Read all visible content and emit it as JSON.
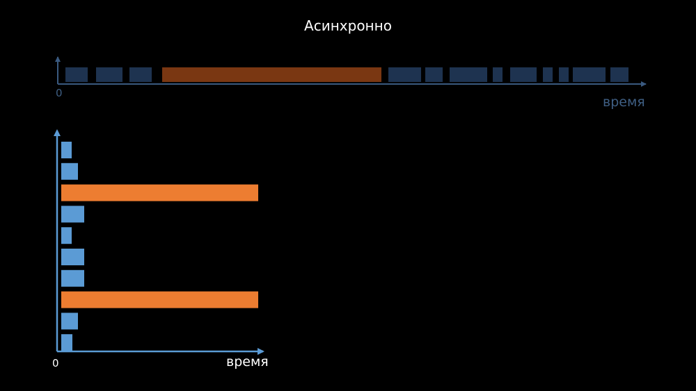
{
  "title": "Асинхронно",
  "colors": {
    "top_task": "#1e3350",
    "top_long": "#7a3712",
    "top_axis": "#3a5a80",
    "top_text": "#3f5f84",
    "bottom_task": "#5b9bd5",
    "bottom_long": "#ed7d31",
    "bottom_axis": "#5b9bd5",
    "bottom_text": "#ffffff"
  },
  "top_timeline": {
    "origin_label": "0",
    "axis_label": "время",
    "segments": [
      {
        "kind": "short",
        "start": 94,
        "end": 126
      },
      {
        "kind": "short",
        "start": 138,
        "end": 176
      },
      {
        "kind": "short",
        "start": 186,
        "end": 218
      },
      {
        "kind": "long",
        "start": 233,
        "end": 548
      },
      {
        "kind": "short",
        "start": 558,
        "end": 605
      },
      {
        "kind": "short",
        "start": 611,
        "end": 636
      },
      {
        "kind": "short",
        "start": 646,
        "end": 700
      },
      {
        "kind": "short",
        "start": 708,
        "end": 722
      },
      {
        "kind": "short",
        "start": 733,
        "end": 771
      },
      {
        "kind": "short",
        "start": 780,
        "end": 794
      },
      {
        "kind": "short",
        "start": 803,
        "end": 817
      },
      {
        "kind": "short",
        "start": 823,
        "end": 870
      },
      {
        "kind": "short",
        "start": 877,
        "end": 903
      }
    ]
  },
  "bottom_chart": {
    "origin_label": "0",
    "axis_label": "время",
    "bars": [
      {
        "kind": "short",
        "length": 15
      },
      {
        "kind": "short",
        "length": 24
      },
      {
        "kind": "long",
        "length": 283
      },
      {
        "kind": "short",
        "length": 33
      },
      {
        "kind": "short",
        "length": 15
      },
      {
        "kind": "short",
        "length": 33
      },
      {
        "kind": "short",
        "length": 33
      },
      {
        "kind": "long",
        "length": 283
      },
      {
        "kind": "short",
        "length": 24
      },
      {
        "kind": "short",
        "length": 16
      }
    ]
  }
}
